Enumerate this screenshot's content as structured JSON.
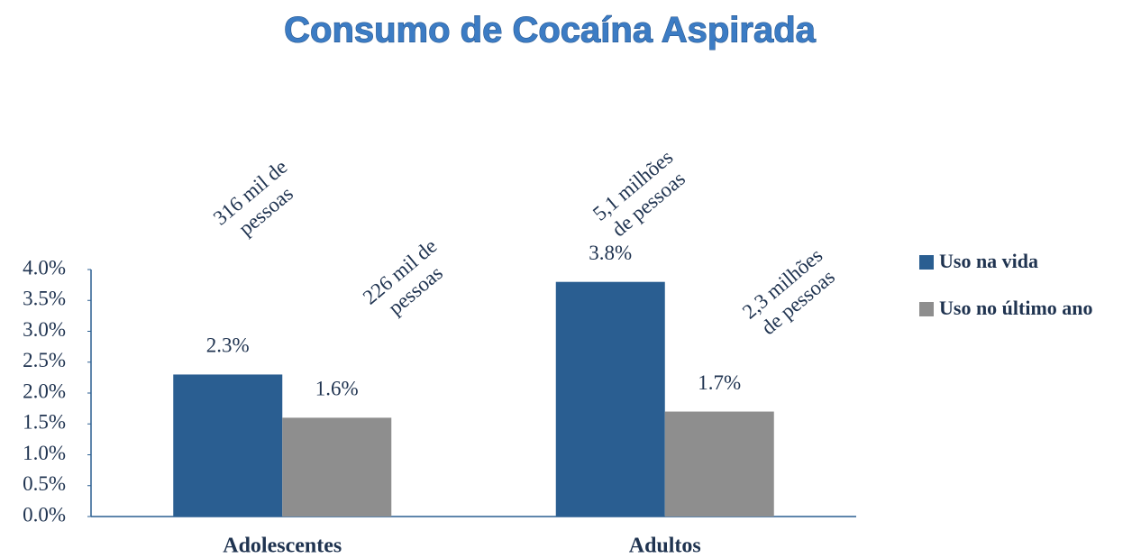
{
  "chart_data": {
    "type": "bar",
    "title": "Consumo de Cocaína Aspirada",
    "categories": [
      "Adolescentes",
      "Adultos"
    ],
    "series": [
      {
        "name": "Uso na vida",
        "color": "#2a5e91",
        "values": [
          2.3,
          3.8
        ],
        "value_labels": [
          "2.3%",
          "3.8%"
        ]
      },
      {
        "name": "Uso no último ano",
        "color": "#8e8e8e",
        "values": [
          1.6,
          1.7
        ],
        "value_labels": [
          "1.6%",
          "1.7%"
        ]
      }
    ],
    "annotations": [
      [
        [
          "316 mil de",
          "pessoas"
        ],
        [
          "5,1 milhões",
          "de pessoas"
        ]
      ],
      [
        [
          "226 mil de",
          "pessoas"
        ],
        [
          "2,3 milhões",
          "de pessoas"
        ]
      ]
    ],
    "ylim": [
      0,
      4
    ],
    "yticks": [
      {
        "value": 0,
        "label": "0.0%"
      },
      {
        "value": 0.5,
        "label": "0.5%"
      },
      {
        "value": 1,
        "label": "1.0%"
      },
      {
        "value": 1.5,
        "label": "1.5%"
      },
      {
        "value": 2,
        "label": "2.0%"
      },
      {
        "value": 2.5,
        "label": "2.5%"
      },
      {
        "value": 3,
        "label": "3.0%"
      },
      {
        "value": 3.5,
        "label": "3.5%"
      },
      {
        "value": 4,
        "label": "4.0%"
      }
    ],
    "legend": "right",
    "grid": false
  }
}
